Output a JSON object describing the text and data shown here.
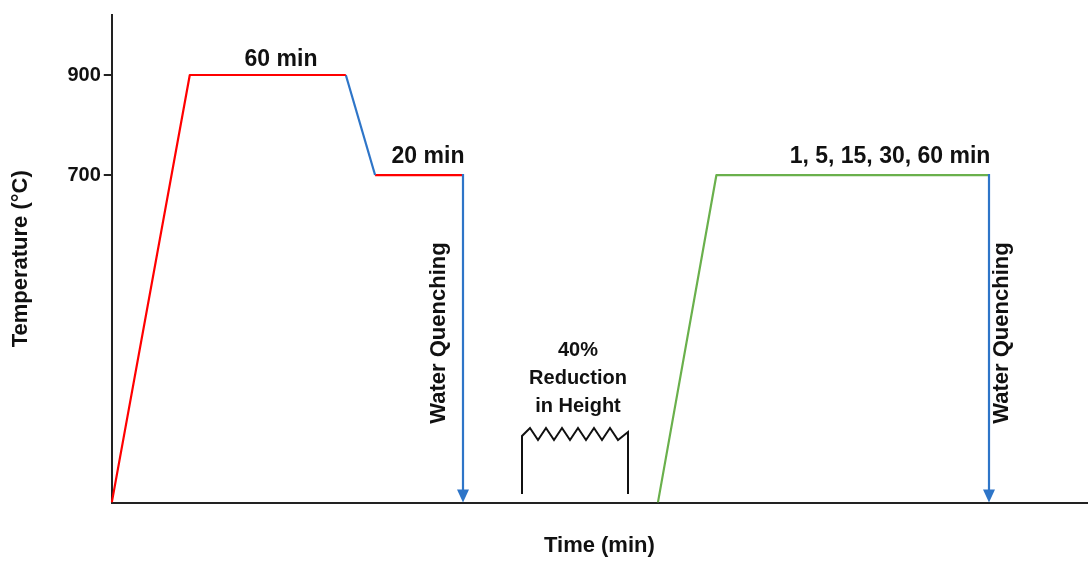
{
  "chart_data": {
    "type": "line",
    "xlabel": "Time (min)",
    "ylabel": "Temperature (°C)",
    "categories": [
      null,
      null,
      null,
      null,
      null,
      null,
      null,
      null,
      null,
      null,
      null,
      null,
      null,
      null,
      null,
      null,
      null,
      null,
      null,
      null,
      null,
      null,
      null,
      null,
      null,
      null,
      null,
      null,
      null,
      null,
      null,
      null,
      null,
      null,
      null,
      null,
      null,
      null,
      null,
      null,
      null,
      null,
      null,
      null,
      null,
      null,
      null,
      null,
      null,
      null,
      null,
      null,
      null,
      null,
      null,
      null,
      null,
      null,
      null,
      null,
      null,
      null,
      null,
      null,
      null,
      null,
      null,
      null,
      null,
      null,
      null,
      null,
      null,
      null,
      null,
      null,
      null,
      null,
      null,
      null,
      null,
      null,
      null,
      null,
      null,
      null,
      null,
      null,
      null,
      null,
      null,
      null,
      null,
      null,
      null,
      null,
      null,
      null,
      null,
      null,
      null
    ],
    "ylim": [
      45,
      1020
    ],
    "yticks": [
      700,
      900
    ],
    "tick_labels": "y",
    "grid": false,
    "legend": false,
    "marker": "none",
    "line_style": "solid",
    "series": [
      {
        "color": "#ff0000",
        "values": [
          45,
          null,
          null,
          null,
          null,
          null,
          null,
          null,
          900,
          null,
          null,
          null,
          null,
          null,
          null,
          null,
          null,
          null,
          null,
          null,
          null,
          null,
          null,
          null,
          900,
          null,
          null,
          null,
          null,
          null,
          null,
          null,
          null,
          null,
          null,
          null,
          null,
          null,
          null,
          null,
          null,
          null,
          null,
          null,
          null,
          null,
          null,
          null,
          null,
          null,
          null,
          null,
          null,
          null,
          null,
          null,
          null,
          null,
          null,
          null,
          null,
          null,
          null,
          null,
          null,
          null,
          null,
          null,
          null,
          null,
          null,
          null,
          null,
          null,
          null,
          null,
          null,
          null,
          null,
          null,
          null,
          null,
          null,
          null,
          null,
          null,
          null,
          null,
          null,
          null,
          null,
          null,
          null,
          null,
          null,
          null,
          null,
          null,
          null,
          null,
          null
        ]
      },
      {
        "color": "#2e75c8",
        "values": [
          null,
          null,
          null,
          null,
          null,
          null,
          null,
          null,
          null,
          null,
          null,
          null,
          null,
          null,
          null,
          null,
          null,
          null,
          null,
          null,
          null,
          null,
          null,
          null,
          900,
          null,
          null,
          700,
          null,
          null,
          null,
          null,
          null,
          null,
          null,
          null,
          null,
          null,
          null,
          null,
          null,
          null,
          null,
          null,
          null,
          null,
          null,
          null,
          null,
          null,
          null,
          null,
          null,
          null,
          null,
          null,
          null,
          null,
          null,
          null,
          null,
          null,
          null,
          null,
          null,
          null,
          null,
          null,
          null,
          null,
          null,
          null,
          null,
          null,
          null,
          null,
          null,
          null,
          null,
          null,
          null,
          null,
          null,
          null,
          null,
          null,
          null,
          null,
          null,
          null,
          null,
          null,
          null,
          null,
          null,
          null,
          null,
          null,
          null,
          null,
          null
        ]
      },
      {
        "color": "#ff0000",
        "values": [
          null,
          null,
          null,
          null,
          null,
          null,
          null,
          null,
          null,
          null,
          null,
          null,
          null,
          null,
          null,
          null,
          null,
          null,
          null,
          null,
          null,
          null,
          null,
          null,
          null,
          null,
          null,
          700,
          null,
          null,
          null,
          null,
          null,
          null,
          null,
          null,
          700,
          null,
          null,
          null,
          null,
          null,
          null,
          null,
          null,
          null,
          null,
          null,
          null,
          null,
          null,
          null,
          null,
          null,
          null,
          null,
          null,
          null,
          null,
          null,
          null,
          null,
          null,
          null,
          null,
          null,
          null,
          null,
          null,
          null,
          null,
          null,
          null,
          null,
          null,
          null,
          null,
          null,
          null,
          null,
          null,
          null,
          null,
          null,
          null,
          null,
          null,
          null,
          null,
          null,
          null,
          null,
          null,
          null,
          null,
          null,
          null,
          null,
          null,
          null,
          null
        ]
      },
      {
        "color": "#6ab04c",
        "values": [
          null,
          null,
          null,
          null,
          null,
          null,
          null,
          null,
          null,
          null,
          null,
          null,
          null,
          null,
          null,
          null,
          null,
          null,
          null,
          null,
          null,
          null,
          null,
          null,
          null,
          null,
          null,
          null,
          null,
          null,
          null,
          null,
          null,
          null,
          null,
          null,
          null,
          null,
          null,
          null,
          null,
          null,
          null,
          null,
          null,
          null,
          null,
          null,
          null,
          null,
          null,
          null,
          null,
          null,
          null,
          null,
          45,
          null,
          null,
          null,
          null,
          null,
          700,
          null,
          null,
          null,
          null,
          null,
          null,
          null,
          null,
          null,
          null,
          null,
          null,
          null,
          null,
          null,
          null,
          null,
          null,
          null,
          null,
          null,
          null,
          null,
          null,
          null,
          null,
          null,
          700,
          null,
          null,
          null,
          null,
          null,
          null,
          null,
          null,
          null,
          null
        ]
      }
    ],
    "annotations": [
      "60 min",
      "20 min",
      "1, 5, 15, 30, 60 min",
      "Water Quenching",
      "40% Reduction in Height",
      "Water Quenching"
    ]
  }
}
